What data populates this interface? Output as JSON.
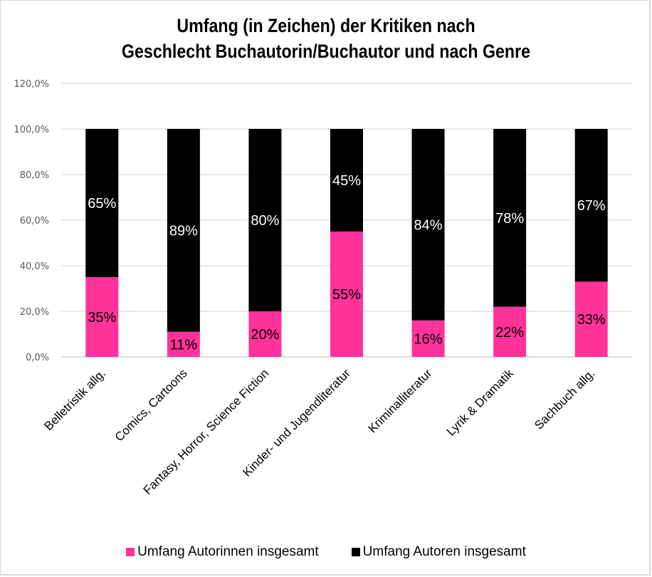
{
  "chart_data": {
    "type": "bar",
    "stacked": true,
    "title": "Umfang (in Zeichen) der Kritiken  nach Geschlecht Buchautorin/Buchautor und nach Genre",
    "title_lines": [
      "Umfang (in Zeichen) der Kritiken  nach",
      "Geschlecht Buchautorin/Buchautor und nach Genre"
    ],
    "xlabel": "",
    "ylabel": "",
    "ylim": [
      0,
      120
    ],
    "yticks": [
      0,
      20,
      40,
      60,
      80,
      100,
      120
    ],
    "ytick_labels": [
      "0,0%",
      "20,0%",
      "40,0%",
      "60,0%",
      "80,0%",
      "100,0%",
      "120,0%"
    ],
    "grid": true,
    "legend_position": "bottom",
    "categories": [
      "Belletristik allg.",
      "Comics, Cartoons",
      "Fantasy, Horror, Science Fiction",
      "Kinder- und Jugendliteratur",
      "Kriminalliteratur",
      "Lyrik & Dramatik",
      "Sachbuch allg."
    ],
    "series": [
      {
        "name": "Umfang Autorinnen insgesamt",
        "color": "#ff3399",
        "label_color": "#000000",
        "values": [
          35,
          11,
          20,
          55,
          16,
          22,
          33
        ],
        "labels": [
          "35%",
          "11%",
          "20%",
          "55%",
          "16%",
          "22%",
          "33%"
        ]
      },
      {
        "name": "Umfang Autoren insgesamt",
        "color": "#000000",
        "label_color": "#ffffff",
        "values": [
          65,
          89,
          80,
          45,
          84,
          78,
          67
        ],
        "labels": [
          "65%",
          "89%",
          "80%",
          "45%",
          "84%",
          "78%",
          "67%"
        ]
      }
    ]
  }
}
